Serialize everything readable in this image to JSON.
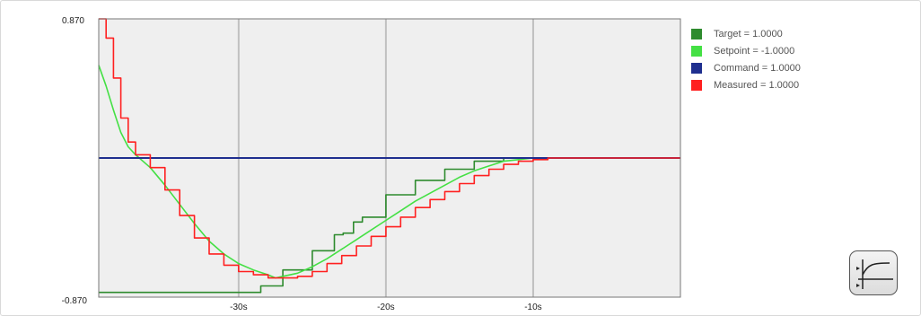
{
  "chart_data": {
    "type": "line",
    "title": "",
    "xlabel": "",
    "ylabel": "",
    "xlim": [
      -39.5,
      0
    ],
    "ylim": [
      -0.87,
      0.87
    ],
    "y_tick_labels": [
      "0.870",
      "-0.870"
    ],
    "x_ticks": [
      -30,
      -20,
      -10
    ],
    "x_tick_labels": [
      "-30s",
      "-20s",
      "-10s"
    ],
    "grid": true,
    "legend_position": "right",
    "series": [
      {
        "name": "Target",
        "label": "Target = 1.0000",
        "color": "#2e8b2e",
        "x": [
          -39.5,
          -36,
          -32,
          -29.2,
          -28.5,
          -27,
          -25,
          -23.5,
          -22.9,
          -22.2,
          -21.6,
          -20,
          -18,
          -16,
          -14,
          -12,
          -10,
          -8,
          -6,
          -4,
          -2,
          0
        ],
        "y": [
          -0.84,
          -0.84,
          -0.84,
          -0.84,
          -0.8,
          -0.7,
          -0.58,
          -0.48,
          -0.47,
          -0.4,
          -0.37,
          -0.23,
          -0.14,
          -0.07,
          -0.02,
          0.0,
          0.0,
          0.0,
          0.0,
          0.0,
          0.0,
          0.0
        ]
      },
      {
        "name": "Setpoint",
        "label": "Setpoint = -1.0000",
        "color": "#44e044",
        "x": [
          -39.5,
          -39,
          -38.5,
          -38,
          -37.5,
          -37,
          -36,
          -35,
          -34,
          -33,
          -32,
          -31,
          -30,
          -29,
          -28,
          -27.5,
          -27,
          -26,
          -25,
          -24,
          -23,
          -22,
          -21,
          -20,
          -19,
          -18,
          -17,
          -16,
          -15,
          -14,
          -13,
          -12,
          -11,
          -10,
          -9,
          -8,
          -7,
          -6,
          -5,
          -4,
          -3,
          -2,
          -1,
          0
        ],
        "y": [
          0.58,
          0.45,
          0.3,
          0.16,
          0.07,
          0.02,
          -0.06,
          -0.17,
          -0.29,
          -0.41,
          -0.52,
          -0.6,
          -0.66,
          -0.7,
          -0.73,
          -0.75,
          -0.74,
          -0.72,
          -0.68,
          -0.63,
          -0.57,
          -0.51,
          -0.45,
          -0.39,
          -0.33,
          -0.27,
          -0.22,
          -0.17,
          -0.12,
          -0.08,
          -0.05,
          -0.02,
          -0.01,
          0.0,
          0.0,
          0.0,
          0.0,
          0.0,
          0.0,
          0.0,
          0.0,
          0.0,
          0.0,
          0.0
        ]
      },
      {
        "name": "Command",
        "label": "Command = 1.0000",
        "color": "#1f2f8f",
        "x": [
          -39.5,
          0
        ],
        "y": [
          0.0,
          0.0
        ]
      },
      {
        "name": "Measured",
        "label": "Measured = 1.0000",
        "color": "#ff2020",
        "x": [
          -39.5,
          -39,
          -38.5,
          -38,
          -37.5,
          -37,
          -36,
          -35,
          -34,
          -33,
          -32,
          -31,
          -30,
          -29,
          -28,
          -27.5,
          -27,
          -26,
          -25,
          -24,
          -23,
          -22,
          -21,
          -20,
          -19,
          -18,
          -17,
          -16,
          -15,
          -14,
          -13,
          -12,
          -11,
          -10,
          -9,
          -8,
          -7,
          -6,
          -5,
          -4,
          -3,
          -2,
          -1,
          0
        ],
        "y": [
          0.87,
          0.75,
          0.5,
          0.25,
          0.1,
          0.02,
          -0.06,
          -0.2,
          -0.36,
          -0.5,
          -0.6,
          -0.67,
          -0.71,
          -0.73,
          -0.75,
          -0.75,
          -0.75,
          -0.74,
          -0.71,
          -0.66,
          -0.61,
          -0.55,
          -0.49,
          -0.43,
          -0.37,
          -0.31,
          -0.26,
          -0.21,
          -0.16,
          -0.11,
          -0.07,
          -0.04,
          -0.02,
          -0.01,
          0.0,
          0.0,
          0.0,
          0.0,
          0.0,
          0.0,
          0.0,
          0.0,
          0.0,
          0.0
        ]
      }
    ]
  },
  "colors": {
    "plot_background": "#efefef",
    "grid": "#c0c0c0",
    "axis": "#777777"
  },
  "mode_button": {
    "icon": "step-response-icon"
  }
}
